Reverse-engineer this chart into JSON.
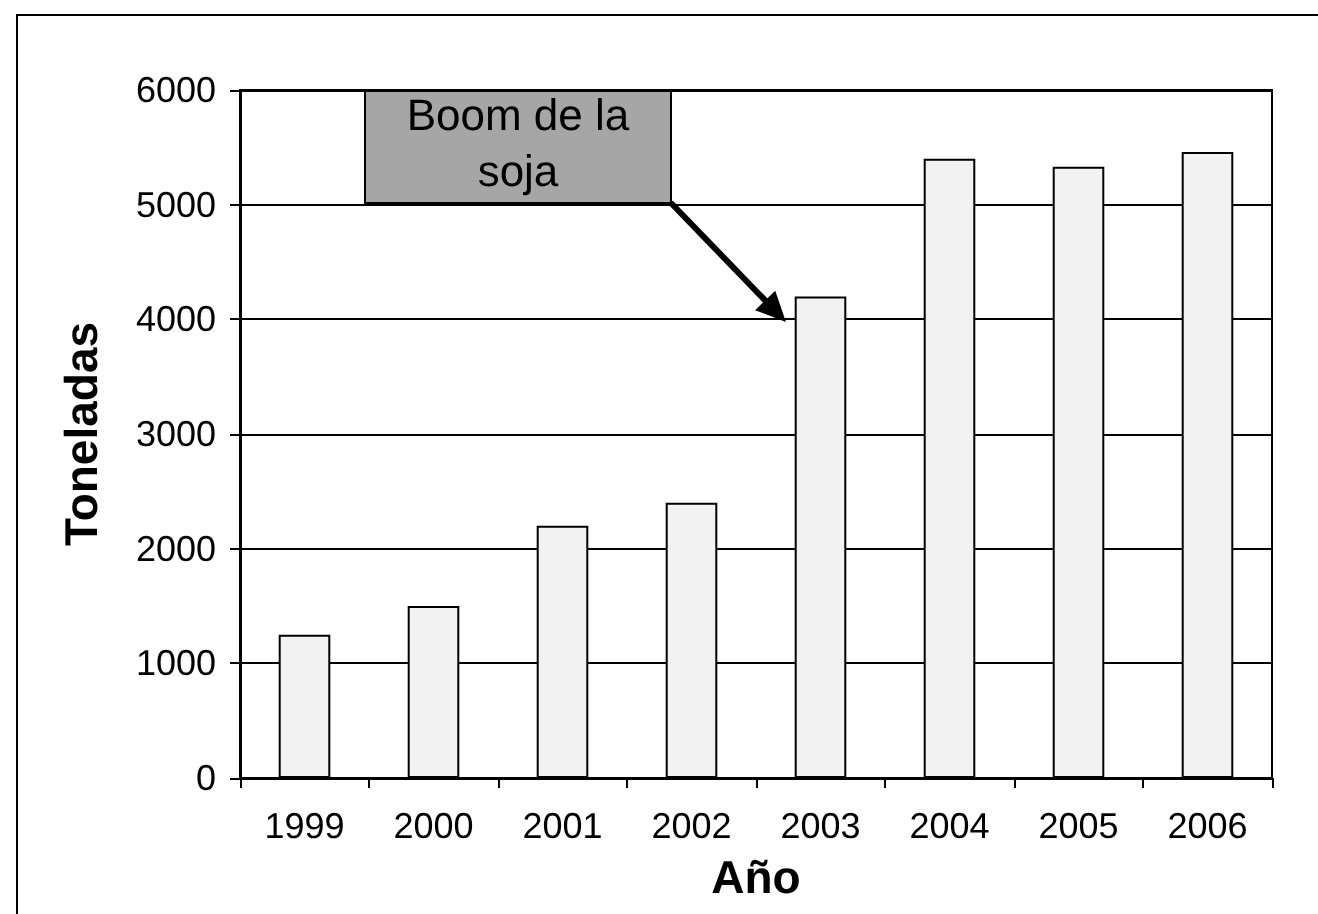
{
  "chart_data": {
    "type": "bar",
    "xlabel": "Año",
    "ylabel": "Toneladas",
    "categories": [
      "1999",
      "2000",
      "2001",
      "2002",
      "2003",
      "2004",
      "2005",
      "2006"
    ],
    "values": [
      1250,
      1500,
      2200,
      2400,
      4200,
      5400,
      5330,
      5460
    ],
    "color": "#f2f2f2",
    "ylim": [
      0,
      6000
    ],
    "yticks": [
      0,
      1000,
      2000,
      3000,
      4000,
      5000,
      6000
    ],
    "grid": "y",
    "annotations": [
      "Boom de la soja"
    ]
  }
}
